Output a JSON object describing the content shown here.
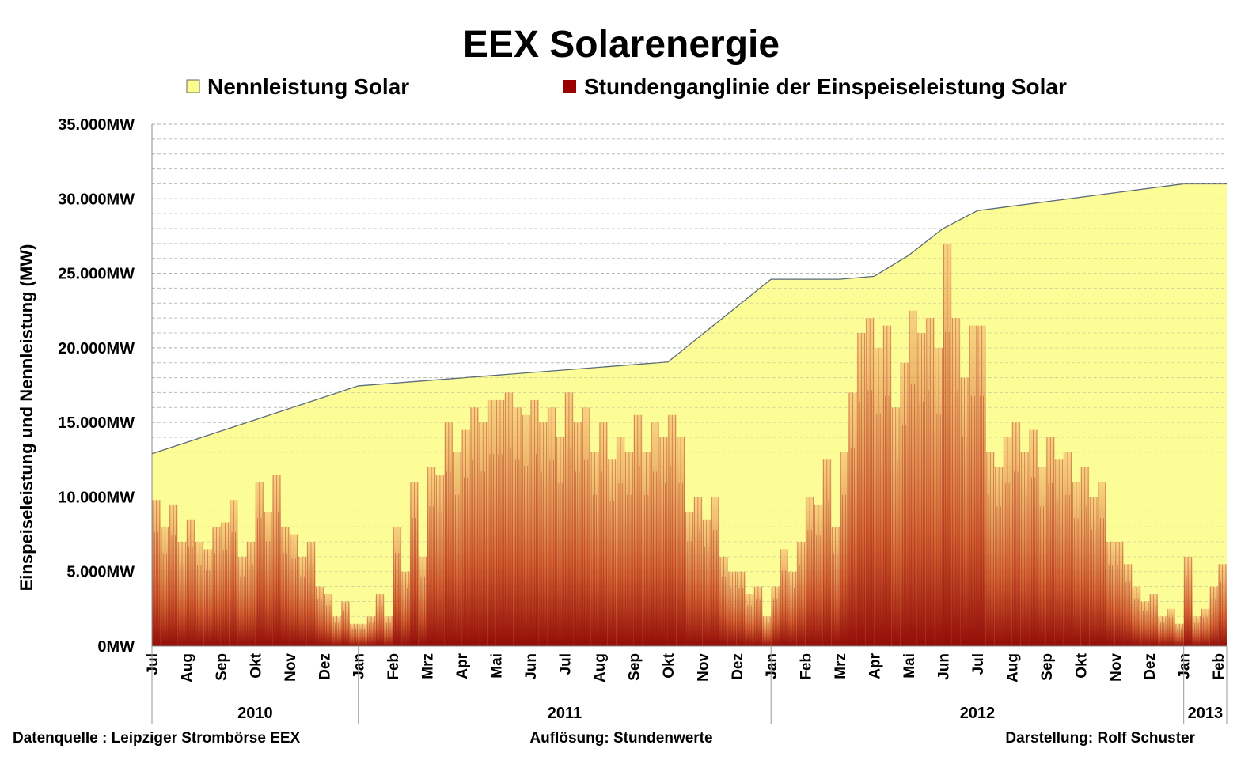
{
  "chart_data": {
    "type": "area",
    "title": "EEX Solarenergie",
    "ylabel": "Einspeiseleistung und Nennleistung (MW)",
    "xlabel": "",
    "ylim": [
      0,
      35000
    ],
    "y_ticks": [
      "0MW",
      "5.000MW",
      "10.000MW",
      "15.000MW",
      "20.000MW",
      "25.000MW",
      "30.000MW",
      "35.000MW"
    ],
    "y_tick_values": [
      0,
      5000,
      10000,
      15000,
      20000,
      25000,
      30000,
      35000
    ],
    "grid": true,
    "legend_placement": "top",
    "x_range": [
      "2010-07",
      "2013-02"
    ],
    "month_labels": [
      "Jul",
      "Aug",
      "Sep",
      "Okt",
      "Nov",
      "Dez",
      "Jan",
      "Feb",
      "Mrz",
      "Apr",
      "Mai",
      "Jun",
      "Jul",
      "Aug",
      "Sep",
      "Okt",
      "Nov",
      "Dez",
      "Jan",
      "Feb",
      "Mrz",
      "Apr",
      "Mai",
      "Jun",
      "Jul",
      "Aug",
      "Sep",
      "Okt",
      "Nov",
      "Dez",
      "Jan",
      "Feb"
    ],
    "years": [
      {
        "label": "2010",
        "from_month": 0,
        "to_month": 6
      },
      {
        "label": "2011",
        "from_month": 6,
        "to_month": 18
      },
      {
        "label": "2012",
        "from_month": 18,
        "to_month": 30
      },
      {
        "label": "2013",
        "from_month": 30,
        "to_month": 31.25
      }
    ],
    "series": [
      {
        "name": "Nennleistung Solar",
        "kind": "area",
        "color": "#FDFD8C",
        "line_color": "#5A6A7A",
        "points": [
          {
            "month": 0,
            "mw": 12900
          },
          {
            "month": 6,
            "mw": 17450
          },
          {
            "month": 15,
            "mw": 19050
          },
          {
            "month": 18,
            "mw": 24600
          },
          {
            "month": 20,
            "mw": 24600
          },
          {
            "month": 21,
            "mw": 24800
          },
          {
            "month": 22,
            "mw": 26200
          },
          {
            "month": 23,
            "mw": 28000
          },
          {
            "month": 24,
            "mw": 29200
          },
          {
            "month": 30,
            "mw": 31000
          },
          {
            "month": 31.25,
            "mw": 31000
          }
        ]
      },
      {
        "name": "Stundenganglinie der Einspeiseleistung Solar",
        "kind": "bars",
        "color": "#990000",
        "weekly_peaks_mw": [
          9800,
          8000,
          9500,
          7000,
          8500,
          7000,
          6500,
          8000,
          8300,
          9800,
          6000,
          7000,
          11000,
          9000,
          11500,
          8000,
          7500,
          6000,
          7000,
          4000,
          3500,
          2000,
          3000,
          1500,
          1500,
          2000,
          3500,
          2000,
          8000,
          5000,
          11000,
          6000,
          12000,
          11500,
          15000,
          13000,
          14500,
          16000,
          15000,
          16500,
          16500,
          17000,
          16000,
          15500,
          16500,
          15000,
          16000,
          14000,
          17000,
          15000,
          16000,
          13000,
          15000,
          12500,
          14000,
          13000,
          15500,
          13000,
          15000,
          14000,
          15500,
          14000,
          9000,
          10000,
          8500,
          10000,
          6000,
          5000,
          5000,
          3500,
          4000,
          2000,
          4000,
          6500,
          5000,
          7000,
          10000,
          9500,
          12500,
          8000,
          13000,
          17000,
          21000,
          22000,
          20000,
          21500,
          16000,
          19000,
          22500,
          21000,
          22000,
          20000,
          27000,
          22000,
          18000,
          21500,
          21500,
          13000,
          12000,
          14000,
          15000,
          13000,
          14500,
          12000,
          14000,
          12500,
          13000,
          11000,
          12000,
          10000,
          11000,
          7000,
          7000,
          5500,
          4000,
          3000,
          3500,
          2000,
          2500,
          1500,
          6000,
          2000,
          2500,
          4000,
          5500
        ]
      }
    ]
  },
  "footer": {
    "source": "Datenquelle :  Leipziger Strombörse EEX",
    "resolution": "Auflösung: Stundenwerte",
    "author": "Darstellung: Rolf Schuster"
  }
}
